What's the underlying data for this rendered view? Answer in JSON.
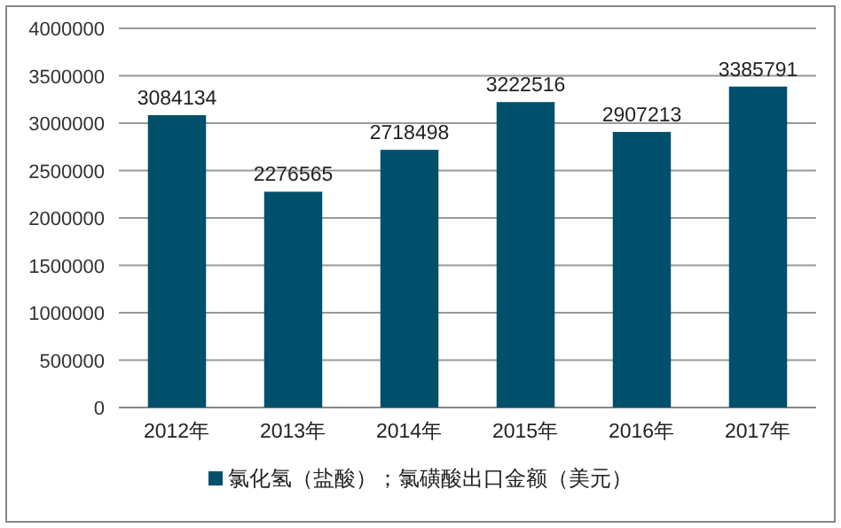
{
  "chart_data": {
    "type": "bar",
    "categories": [
      "2012年",
      "2013年",
      "2014年",
      "2015年",
      "2016年",
      "2017年"
    ],
    "series": [
      {
        "name": "氯化氢（盐酸）；氯磺酸出口金额（美元）",
        "color": "#00506b",
        "values": [
          3084134,
          2276565,
          2718498,
          3222516,
          2907213,
          3385791
        ]
      }
    ],
    "ylim": [
      0,
      4000000
    ],
    "yticks": [
      0,
      500000,
      1000000,
      1500000,
      2000000,
      2500000,
      3000000,
      3500000,
      4000000
    ],
    "grid": "y",
    "data_labels": true,
    "legend": "bottom"
  }
}
